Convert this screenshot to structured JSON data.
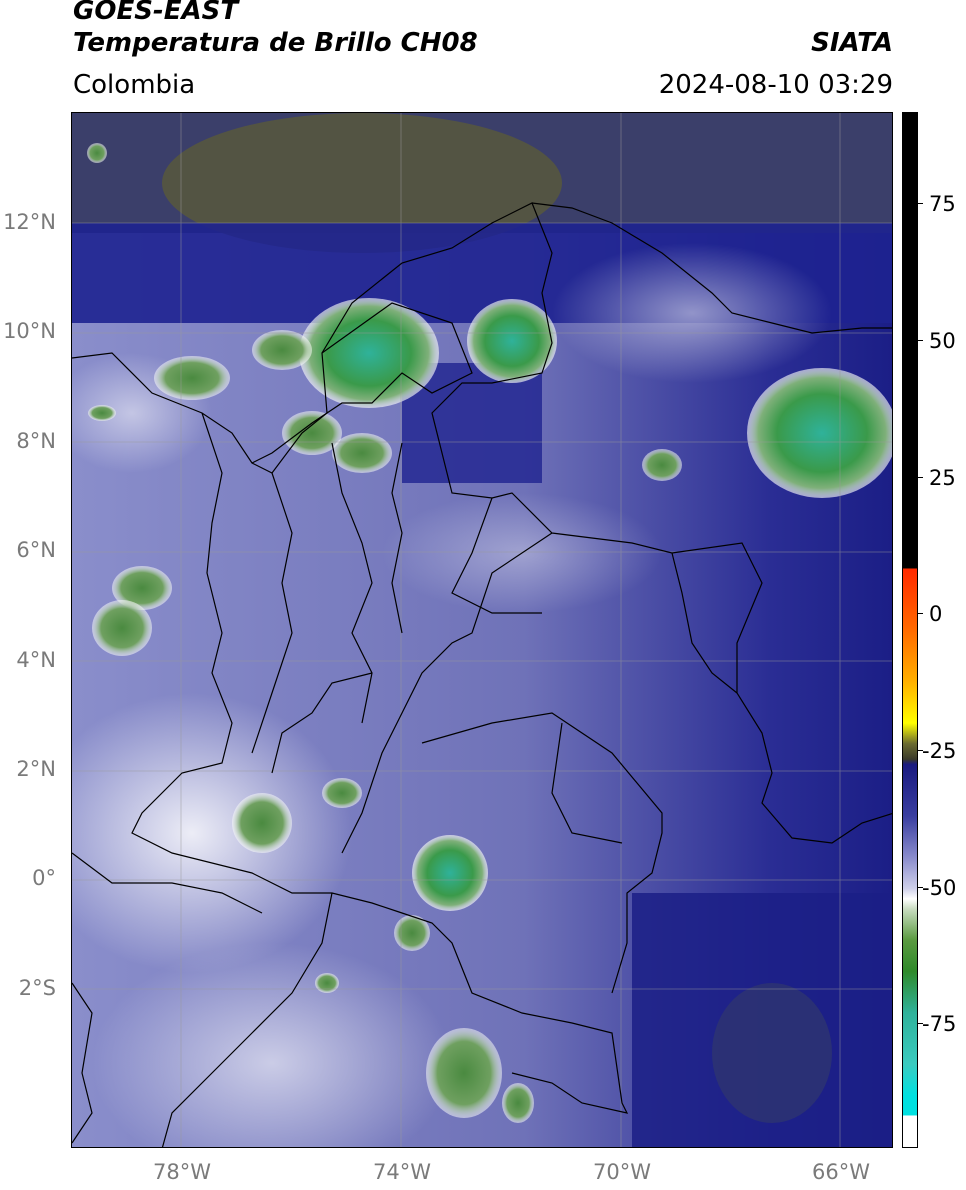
{
  "header": {
    "title_line1": "GOES-EAST",
    "title_line2": "Temperatura de Brillo CH08",
    "brand": "SIATA",
    "region": "Colombia",
    "datetime": "2024-08-10 03:29"
  },
  "axes": {
    "lat_ticks": [
      "12°N",
      "10°N",
      "8°N",
      "6°N",
      "4°N",
      "2°N",
      "0°",
      "2°S"
    ],
    "lon_ticks": [
      "78°W",
      "74°W",
      "70°W",
      "66°W"
    ]
  },
  "colorbar": {
    "ticks": [
      "75",
      "50",
      "25",
      "0",
      "-25",
      "-50",
      "-75"
    ],
    "colors": {
      "hot": "#000000",
      "red": "#ff2a00",
      "yellow": "#ffff00",
      "dark_olive": "#3a3a2a",
      "navy": "#1a1a80",
      "light": "#ffffff",
      "green": "#2f8a2a",
      "teal": "#2fb29a",
      "cyan": "#00e0e0"
    }
  }
}
